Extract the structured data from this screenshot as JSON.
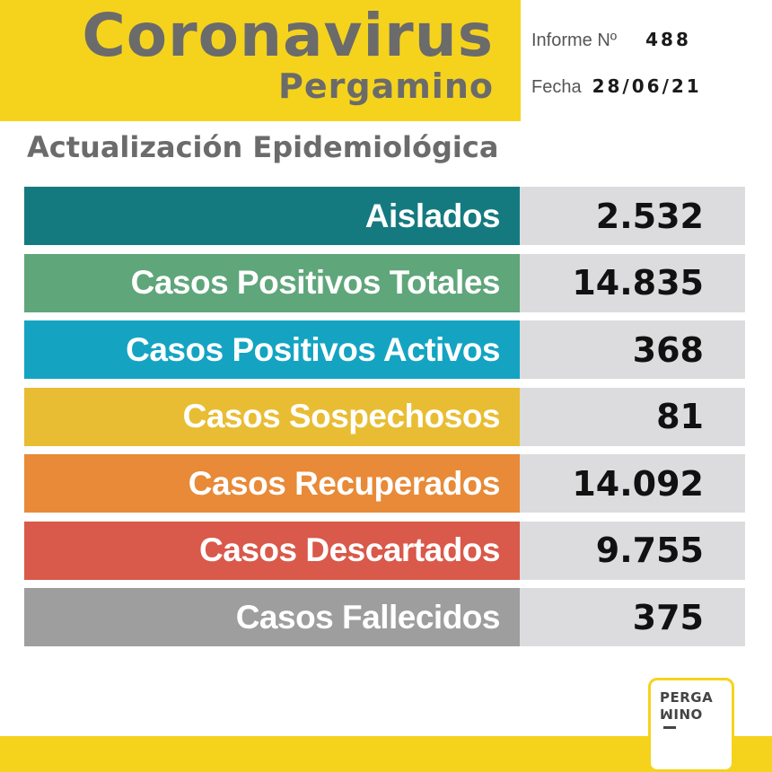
{
  "header": {
    "title": "Coronavirus",
    "subtitle": "Pergamino",
    "report_label": "Informe Nº",
    "report_number": "488",
    "date_label": "Fecha",
    "date_value": "28/06/21"
  },
  "section_title": "Actualización Epidemiológica",
  "stats": [
    {
      "label": "Aislados",
      "value": "2.532",
      "color": "#157a80"
    },
    {
      "label": "Casos Positivos Totales",
      "value": "14.835",
      "color": "#5fa67a"
    },
    {
      "label": "Casos Positivos Activos",
      "value": "368",
      "color": "#14a4c2"
    },
    {
      "label": "Casos Sospechosos",
      "value": "81",
      "color": "#e9bd33"
    },
    {
      "label": "Casos Recuperados",
      "value": "14.092",
      "color": "#e88a37"
    },
    {
      "label": "Casos Descartados",
      "value": "9.755",
      "color": "#d9594a"
    },
    {
      "label": "Casos Fallecidos",
      "value": "375",
      "color": "#9e9e9e"
    }
  ],
  "logo": {
    "line1": "PERGA",
    "line2": "ꟽINO"
  },
  "colors": {
    "brand_yellow": "#f5d31c",
    "text_gray": "#6b6b6b",
    "value_bg": "#dcdcde"
  }
}
